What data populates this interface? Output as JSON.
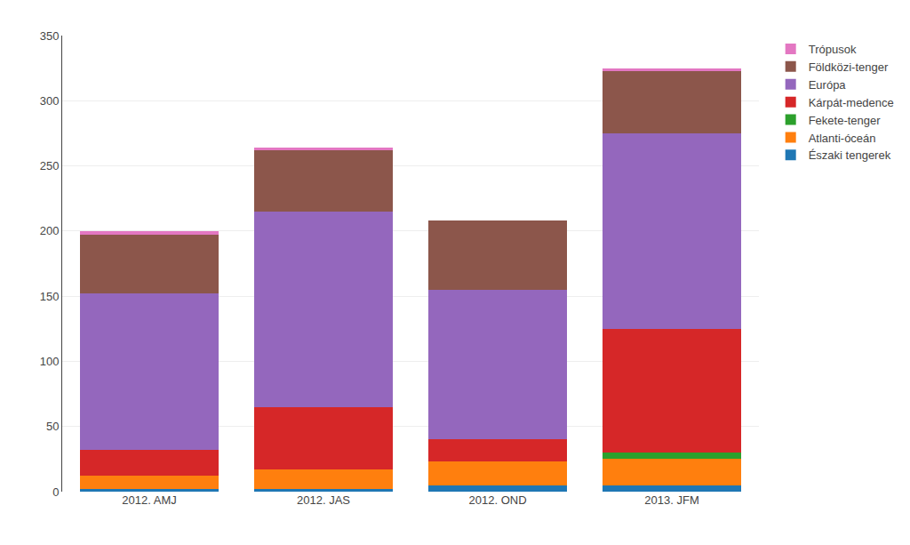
{
  "chart_data": {
    "type": "bar",
    "stacked": true,
    "categories": [
      "2012. AMJ",
      "2012. JAS",
      "2012. OND",
      "2013. JFM"
    ],
    "series": [
      {
        "name": "Északi tengerek",
        "values": [
          2,
          2,
          5,
          5
        ]
      },
      {
        "name": "Atlanti-óceán",
        "values": [
          10,
          15,
          18,
          20
        ]
      },
      {
        "name": "Fekete-tenger",
        "values": [
          0,
          0,
          0,
          5
        ]
      },
      {
        "name": "Kárpát-medence",
        "values": [
          20,
          48,
          17,
          95
        ]
      },
      {
        "name": "Európa",
        "values": [
          120,
          150,
          115,
          150
        ]
      },
      {
        "name": "Földközi-tenger",
        "values": [
          45,
          47,
          53,
          48
        ]
      },
      {
        "name": "Trópusok",
        "values": [
          3,
          2,
          0,
          2
        ]
      }
    ],
    "ylim": [
      0,
      350
    ],
    "yticks": [
      0,
      50,
      100,
      150,
      200,
      250,
      300,
      350
    ],
    "grid": true,
    "legend": "right"
  }
}
